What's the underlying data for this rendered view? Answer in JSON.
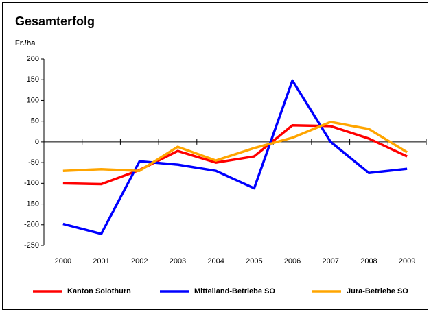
{
  "chart_data": {
    "type": "line",
    "title": "Gesamterfolg",
    "y_label": "Fr./ha",
    "categories": [
      "2000",
      "2001",
      "2002",
      "2003",
      "2004",
      "2005",
      "2006",
      "2007",
      "2008",
      "2009"
    ],
    "series": [
      {
        "name": "Kanton Solothurn",
        "color": "#ff0000",
        "values": [
          -100,
          -102,
          -68,
          -22,
          -50,
          -35,
          40,
          38,
          8,
          -35
        ]
      },
      {
        "name": "Mittelland-Betriebe SO",
        "color": "#0000ff",
        "values": [
          -198,
          -222,
          -47,
          -55,
          -70,
          -112,
          148,
          0,
          -75,
          -65
        ]
      },
      {
        "name": "Jura-Betriebe SO",
        "color": "#ffa500",
        "values": [
          -70,
          -66,
          -70,
          -12,
          -45,
          -15,
          10,
          48,
          31,
          -25
        ]
      }
    ],
    "ylim": [
      -250,
      200
    ],
    "yticks": [
      -250,
      -200,
      -150,
      -100,
      -50,
      0,
      50,
      100,
      150,
      200
    ],
    "grid": false,
    "legend": "bottom"
  }
}
